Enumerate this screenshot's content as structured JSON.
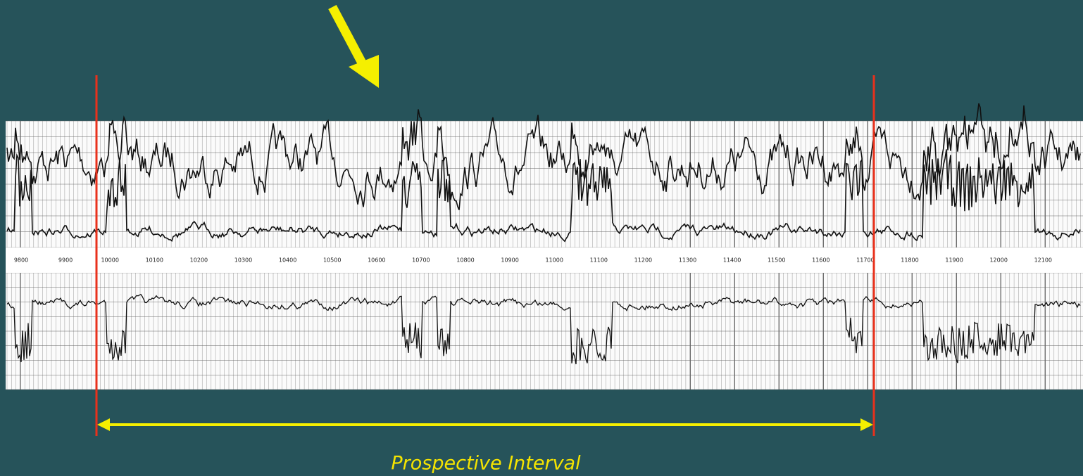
{
  "log": {
    "depth_labels": [
      "9800",
      "9900",
      "10000",
      "10100",
      "10200",
      "10300",
      "10400",
      "10500",
      "10600",
      "10700",
      "10800",
      "10900",
      "11000",
      "11100",
      "11200",
      "11300",
      "11400",
      "11500",
      "11600",
      "11700",
      "11800",
      "11900",
      "12000",
      "12100"
    ]
  },
  "annotation": {
    "label": "Prospective Interval"
  }
}
